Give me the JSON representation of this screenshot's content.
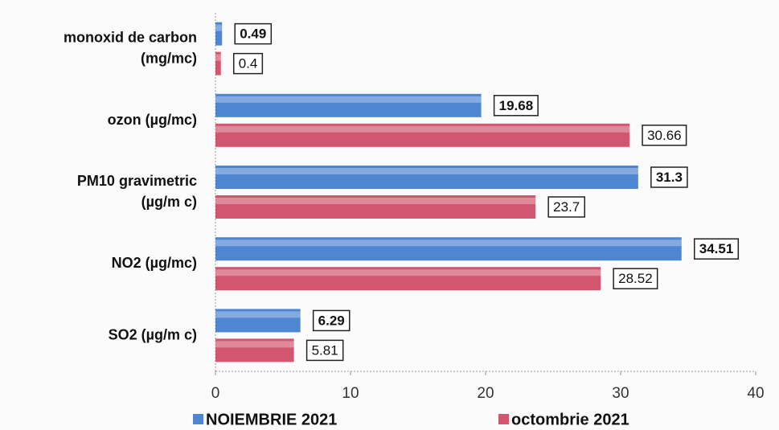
{
  "chart_data": {
    "type": "hbar",
    "categories": [
      [
        "monoxid de carbon",
        "(mg/mc)"
      ],
      [
        "ozon (µg/mc)"
      ],
      [
        "PM10 gravimetric",
        "(µg/m c)"
      ],
      [
        "NO2 (µg/mc)"
      ],
      [
        "SO2 (µg/m c)"
      ]
    ],
    "series": [
      {
        "name": "NOIEMBRIE 2021",
        "color": "#4f86d2",
        "values": [
          0.49,
          19.68,
          31.3,
          34.51,
          6.29
        ]
      },
      {
        "name": "octombrie 2021",
        "color": "#d35670",
        "values": [
          0.4,
          30.66,
          23.7,
          28.52,
          5.81
        ]
      }
    ],
    "xlim": [
      0,
      40
    ],
    "xticks": [
      0,
      10,
      20,
      30,
      40
    ],
    "legend": "bottom"
  }
}
